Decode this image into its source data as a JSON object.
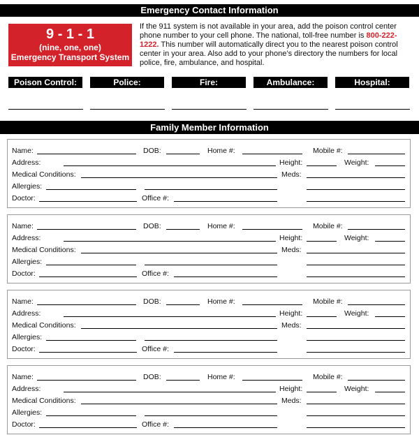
{
  "emergency": {
    "title": "Emergency Contact Information",
    "badge": {
      "number": "9 - 1 - 1",
      "spoken": "(nine, one, one)",
      "system": "Emergency Transport System",
      "color": "#d4222a"
    },
    "intro_before": "If the 911 system is not available in your area, add the poison control center phone number to your cell phone. The national, toll-free number is ",
    "poison_number": "800-222-1222.",
    "intro_after": " This number will automatically direct you to the nearest poison control center in your area. Also add to your phone’s directory the numbers for local police, fire, ambulance, and hospital.",
    "contacts": [
      "Poison Control:",
      "Police:",
      "Fire:",
      "Ambulance:",
      "Hospital:"
    ]
  },
  "family": {
    "title": "Family Member Information",
    "member_count": 4,
    "labels": {
      "name": "Name:",
      "dob": "DOB:",
      "home": "Home #:",
      "mobile": "Mobile #:",
      "address": "Address:",
      "height": "Height:",
      "weight": "Weight:",
      "medical": "Medical Conditions:",
      "meds": "Meds:",
      "allergies": "Allergies:",
      "doctor": "Doctor:",
      "office": "Office #:"
    }
  }
}
